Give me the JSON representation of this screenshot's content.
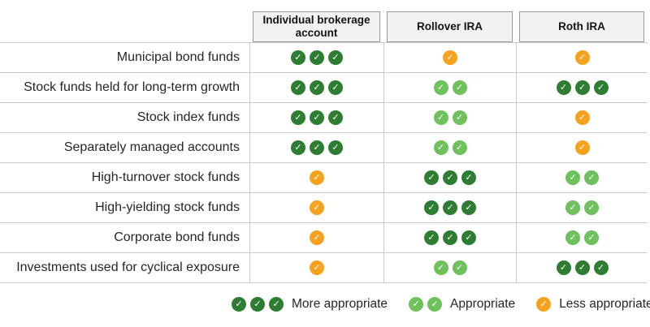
{
  "icons": {
    "check_glyph": "✓"
  },
  "colors": {
    "more": "#2e7d32",
    "appropriate": "#6ec15c",
    "less": "#f6a21e",
    "grid_line": "#cbcbcb",
    "header_background": "#f2f2f2",
    "header_border": "#9b9b9b",
    "text": "#262626"
  },
  "ratings": {
    "more": {
      "count": 3,
      "color": "#2e7d32"
    },
    "appropriate": {
      "count": 2,
      "color": "#6ec15c"
    },
    "less": {
      "count": 1,
      "color": "#f6a21e"
    }
  },
  "table": {
    "columns": [
      "Individual brokerage account",
      "Rollover IRA",
      "Roth IRA"
    ],
    "rows": [
      {
        "label": "Municipal bond funds",
        "ratings": [
          "more",
          "less",
          "less"
        ]
      },
      {
        "label": "Stock funds held for long-term growth",
        "ratings": [
          "more",
          "appropriate",
          "more"
        ]
      },
      {
        "label": "Stock index funds",
        "ratings": [
          "more",
          "appropriate",
          "less"
        ]
      },
      {
        "label": "Separately managed accounts",
        "ratings": [
          "more",
          "appropriate",
          "less"
        ]
      },
      {
        "label": "High-turnover stock funds",
        "ratings": [
          "less",
          "more",
          "appropriate"
        ]
      },
      {
        "label": "High-yielding stock funds",
        "ratings": [
          "less",
          "more",
          "appropriate"
        ]
      },
      {
        "label": "Corporate bond funds",
        "ratings": [
          "less",
          "more",
          "appropriate"
        ]
      },
      {
        "label": "Investments used for cyclical exposure",
        "ratings": [
          "less",
          "appropriate",
          "more"
        ]
      }
    ]
  },
  "legend": [
    {
      "level": "more",
      "label": "More appropriate"
    },
    {
      "level": "appropriate",
      "label": "Appropriate"
    },
    {
      "level": "less",
      "label": "Less appropriate"
    }
  ],
  "chart_data": {
    "type": "table",
    "title": "",
    "columns": [
      "Individual brokerage account",
      "Rollover IRA",
      "Roth IRA"
    ],
    "rows": [
      [
        "Municipal bond funds",
        "More appropriate",
        "Less appropriate",
        "Less appropriate"
      ],
      [
        "Stock funds held for long-term growth",
        "More appropriate",
        "Appropriate",
        "More appropriate"
      ],
      [
        "Stock index funds",
        "More appropriate",
        "Appropriate",
        "Less appropriate"
      ],
      [
        "Separately managed accounts",
        "More appropriate",
        "Appropriate",
        "Less appropriate"
      ],
      [
        "High-turnover stock funds",
        "Less appropriate",
        "More appropriate",
        "Appropriate"
      ],
      [
        "High-yielding stock funds",
        "Less appropriate",
        "More appropriate",
        "Appropriate"
      ],
      [
        "Corporate bond funds",
        "Less appropriate",
        "More appropriate",
        "Appropriate"
      ],
      [
        "Investments used for cyclical exposure",
        "Less appropriate",
        "Appropriate",
        "More appropriate"
      ]
    ],
    "legend": [
      "More appropriate = 3 dark green checks",
      "Appropriate = 2 light green checks",
      "Less appropriate = 1 orange check"
    ]
  }
}
